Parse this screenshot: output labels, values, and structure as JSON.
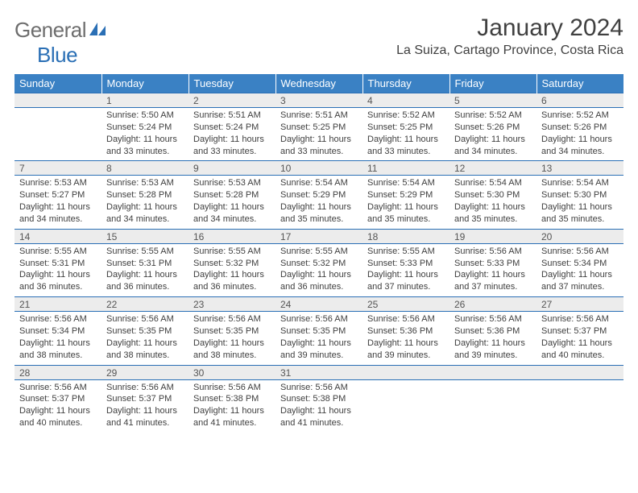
{
  "brand": {
    "part1": "General",
    "part2": "Blue"
  },
  "title": "January 2024",
  "subtitle": "La Suiza, Cartago Province, Costa Rica",
  "colors": {
    "header_bg": "#3a81c4",
    "header_text": "#ffffff",
    "rule": "#2a6fb5",
    "daynum_bg": "#ececec",
    "text": "#404040",
    "logo_gray": "#6d6d6d",
    "logo_blue": "#2a6fb5"
  },
  "weekdays": [
    "Sunday",
    "Monday",
    "Tuesday",
    "Wednesday",
    "Thursday",
    "Friday",
    "Saturday"
  ],
  "weeks": [
    [
      null,
      {
        "n": "1",
        "sunrise": "Sunrise: 5:50 AM",
        "sunset": "Sunset: 5:24 PM",
        "daylight": "Daylight: 11 hours and 33 minutes."
      },
      {
        "n": "2",
        "sunrise": "Sunrise: 5:51 AM",
        "sunset": "Sunset: 5:24 PM",
        "daylight": "Daylight: 11 hours and 33 minutes."
      },
      {
        "n": "3",
        "sunrise": "Sunrise: 5:51 AM",
        "sunset": "Sunset: 5:25 PM",
        "daylight": "Daylight: 11 hours and 33 minutes."
      },
      {
        "n": "4",
        "sunrise": "Sunrise: 5:52 AM",
        "sunset": "Sunset: 5:25 PM",
        "daylight": "Daylight: 11 hours and 33 minutes."
      },
      {
        "n": "5",
        "sunrise": "Sunrise: 5:52 AM",
        "sunset": "Sunset: 5:26 PM",
        "daylight": "Daylight: 11 hours and 34 minutes."
      },
      {
        "n": "6",
        "sunrise": "Sunrise: 5:52 AM",
        "sunset": "Sunset: 5:26 PM",
        "daylight": "Daylight: 11 hours and 34 minutes."
      }
    ],
    [
      {
        "n": "7",
        "sunrise": "Sunrise: 5:53 AM",
        "sunset": "Sunset: 5:27 PM",
        "daylight": "Daylight: 11 hours and 34 minutes."
      },
      {
        "n": "8",
        "sunrise": "Sunrise: 5:53 AM",
        "sunset": "Sunset: 5:28 PM",
        "daylight": "Daylight: 11 hours and 34 minutes."
      },
      {
        "n": "9",
        "sunrise": "Sunrise: 5:53 AM",
        "sunset": "Sunset: 5:28 PM",
        "daylight": "Daylight: 11 hours and 34 minutes."
      },
      {
        "n": "10",
        "sunrise": "Sunrise: 5:54 AM",
        "sunset": "Sunset: 5:29 PM",
        "daylight": "Daylight: 11 hours and 35 minutes."
      },
      {
        "n": "11",
        "sunrise": "Sunrise: 5:54 AM",
        "sunset": "Sunset: 5:29 PM",
        "daylight": "Daylight: 11 hours and 35 minutes."
      },
      {
        "n": "12",
        "sunrise": "Sunrise: 5:54 AM",
        "sunset": "Sunset: 5:30 PM",
        "daylight": "Daylight: 11 hours and 35 minutes."
      },
      {
        "n": "13",
        "sunrise": "Sunrise: 5:54 AM",
        "sunset": "Sunset: 5:30 PM",
        "daylight": "Daylight: 11 hours and 35 minutes."
      }
    ],
    [
      {
        "n": "14",
        "sunrise": "Sunrise: 5:55 AM",
        "sunset": "Sunset: 5:31 PM",
        "daylight": "Daylight: 11 hours and 36 minutes."
      },
      {
        "n": "15",
        "sunrise": "Sunrise: 5:55 AM",
        "sunset": "Sunset: 5:31 PM",
        "daylight": "Daylight: 11 hours and 36 minutes."
      },
      {
        "n": "16",
        "sunrise": "Sunrise: 5:55 AM",
        "sunset": "Sunset: 5:32 PM",
        "daylight": "Daylight: 11 hours and 36 minutes."
      },
      {
        "n": "17",
        "sunrise": "Sunrise: 5:55 AM",
        "sunset": "Sunset: 5:32 PM",
        "daylight": "Daylight: 11 hours and 36 minutes."
      },
      {
        "n": "18",
        "sunrise": "Sunrise: 5:55 AM",
        "sunset": "Sunset: 5:33 PM",
        "daylight": "Daylight: 11 hours and 37 minutes."
      },
      {
        "n": "19",
        "sunrise": "Sunrise: 5:56 AM",
        "sunset": "Sunset: 5:33 PM",
        "daylight": "Daylight: 11 hours and 37 minutes."
      },
      {
        "n": "20",
        "sunrise": "Sunrise: 5:56 AM",
        "sunset": "Sunset: 5:34 PM",
        "daylight": "Daylight: 11 hours and 37 minutes."
      }
    ],
    [
      {
        "n": "21",
        "sunrise": "Sunrise: 5:56 AM",
        "sunset": "Sunset: 5:34 PM",
        "daylight": "Daylight: 11 hours and 38 minutes."
      },
      {
        "n": "22",
        "sunrise": "Sunrise: 5:56 AM",
        "sunset": "Sunset: 5:35 PM",
        "daylight": "Daylight: 11 hours and 38 minutes."
      },
      {
        "n": "23",
        "sunrise": "Sunrise: 5:56 AM",
        "sunset": "Sunset: 5:35 PM",
        "daylight": "Daylight: 11 hours and 38 minutes."
      },
      {
        "n": "24",
        "sunrise": "Sunrise: 5:56 AM",
        "sunset": "Sunset: 5:35 PM",
        "daylight": "Daylight: 11 hours and 39 minutes."
      },
      {
        "n": "25",
        "sunrise": "Sunrise: 5:56 AM",
        "sunset": "Sunset: 5:36 PM",
        "daylight": "Daylight: 11 hours and 39 minutes."
      },
      {
        "n": "26",
        "sunrise": "Sunrise: 5:56 AM",
        "sunset": "Sunset: 5:36 PM",
        "daylight": "Daylight: 11 hours and 39 minutes."
      },
      {
        "n": "27",
        "sunrise": "Sunrise: 5:56 AM",
        "sunset": "Sunset: 5:37 PM",
        "daylight": "Daylight: 11 hours and 40 minutes."
      }
    ],
    [
      {
        "n": "28",
        "sunrise": "Sunrise: 5:56 AM",
        "sunset": "Sunset: 5:37 PM",
        "daylight": "Daylight: 11 hours and 40 minutes."
      },
      {
        "n": "29",
        "sunrise": "Sunrise: 5:56 AM",
        "sunset": "Sunset: 5:37 PM",
        "daylight": "Daylight: 11 hours and 41 minutes."
      },
      {
        "n": "30",
        "sunrise": "Sunrise: 5:56 AM",
        "sunset": "Sunset: 5:38 PM",
        "daylight": "Daylight: 11 hours and 41 minutes."
      },
      {
        "n": "31",
        "sunrise": "Sunrise: 5:56 AM",
        "sunset": "Sunset: 5:38 PM",
        "daylight": "Daylight: 11 hours and 41 minutes."
      },
      null,
      null,
      null
    ]
  ]
}
